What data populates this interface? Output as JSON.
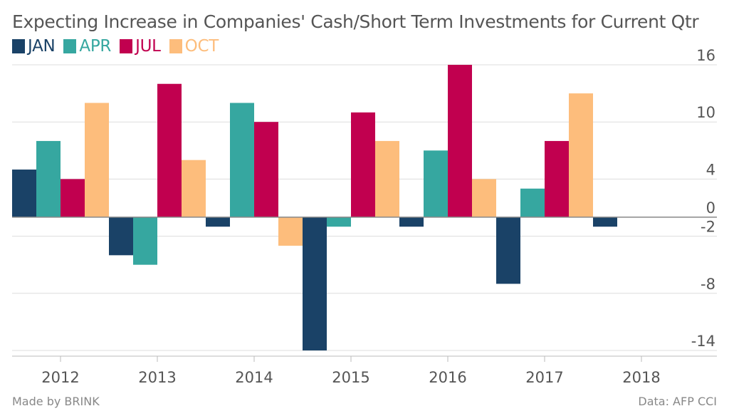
{
  "chart_data": {
    "type": "bar",
    "title": "Expecting Increase in Companies' Cash/Short Term Investments for Current Qtr",
    "categories": [
      "2012",
      "2013",
      "2014",
      "2015",
      "2016",
      "2017",
      "2018"
    ],
    "series": [
      {
        "name": "JAN",
        "color": "#1a4267",
        "values": [
          5,
          -4,
          -1,
          -14,
          -1,
          -7,
          -1
        ]
      },
      {
        "name": "APR",
        "color": "#36a7a0",
        "values": [
          8,
          -5,
          12,
          -1,
          7,
          3,
          null
        ]
      },
      {
        "name": "JUL",
        "color": "#c1004f",
        "values": [
          4,
          14,
          10,
          11,
          16,
          8,
          null
        ]
      },
      {
        "name": "OCT",
        "color": "#fdbd7c",
        "values": [
          12,
          6,
          -3,
          8,
          4,
          13,
          null
        ]
      }
    ],
    "y_ticks": [
      16,
      10,
      4,
      0,
      -2,
      -8,
      -14
    ],
    "ylim": [
      -14,
      16
    ],
    "grid": true,
    "legend_position": "top-left",
    "source_left": "Made by BRINK",
    "source_right": "Data: AFP CCI"
  }
}
